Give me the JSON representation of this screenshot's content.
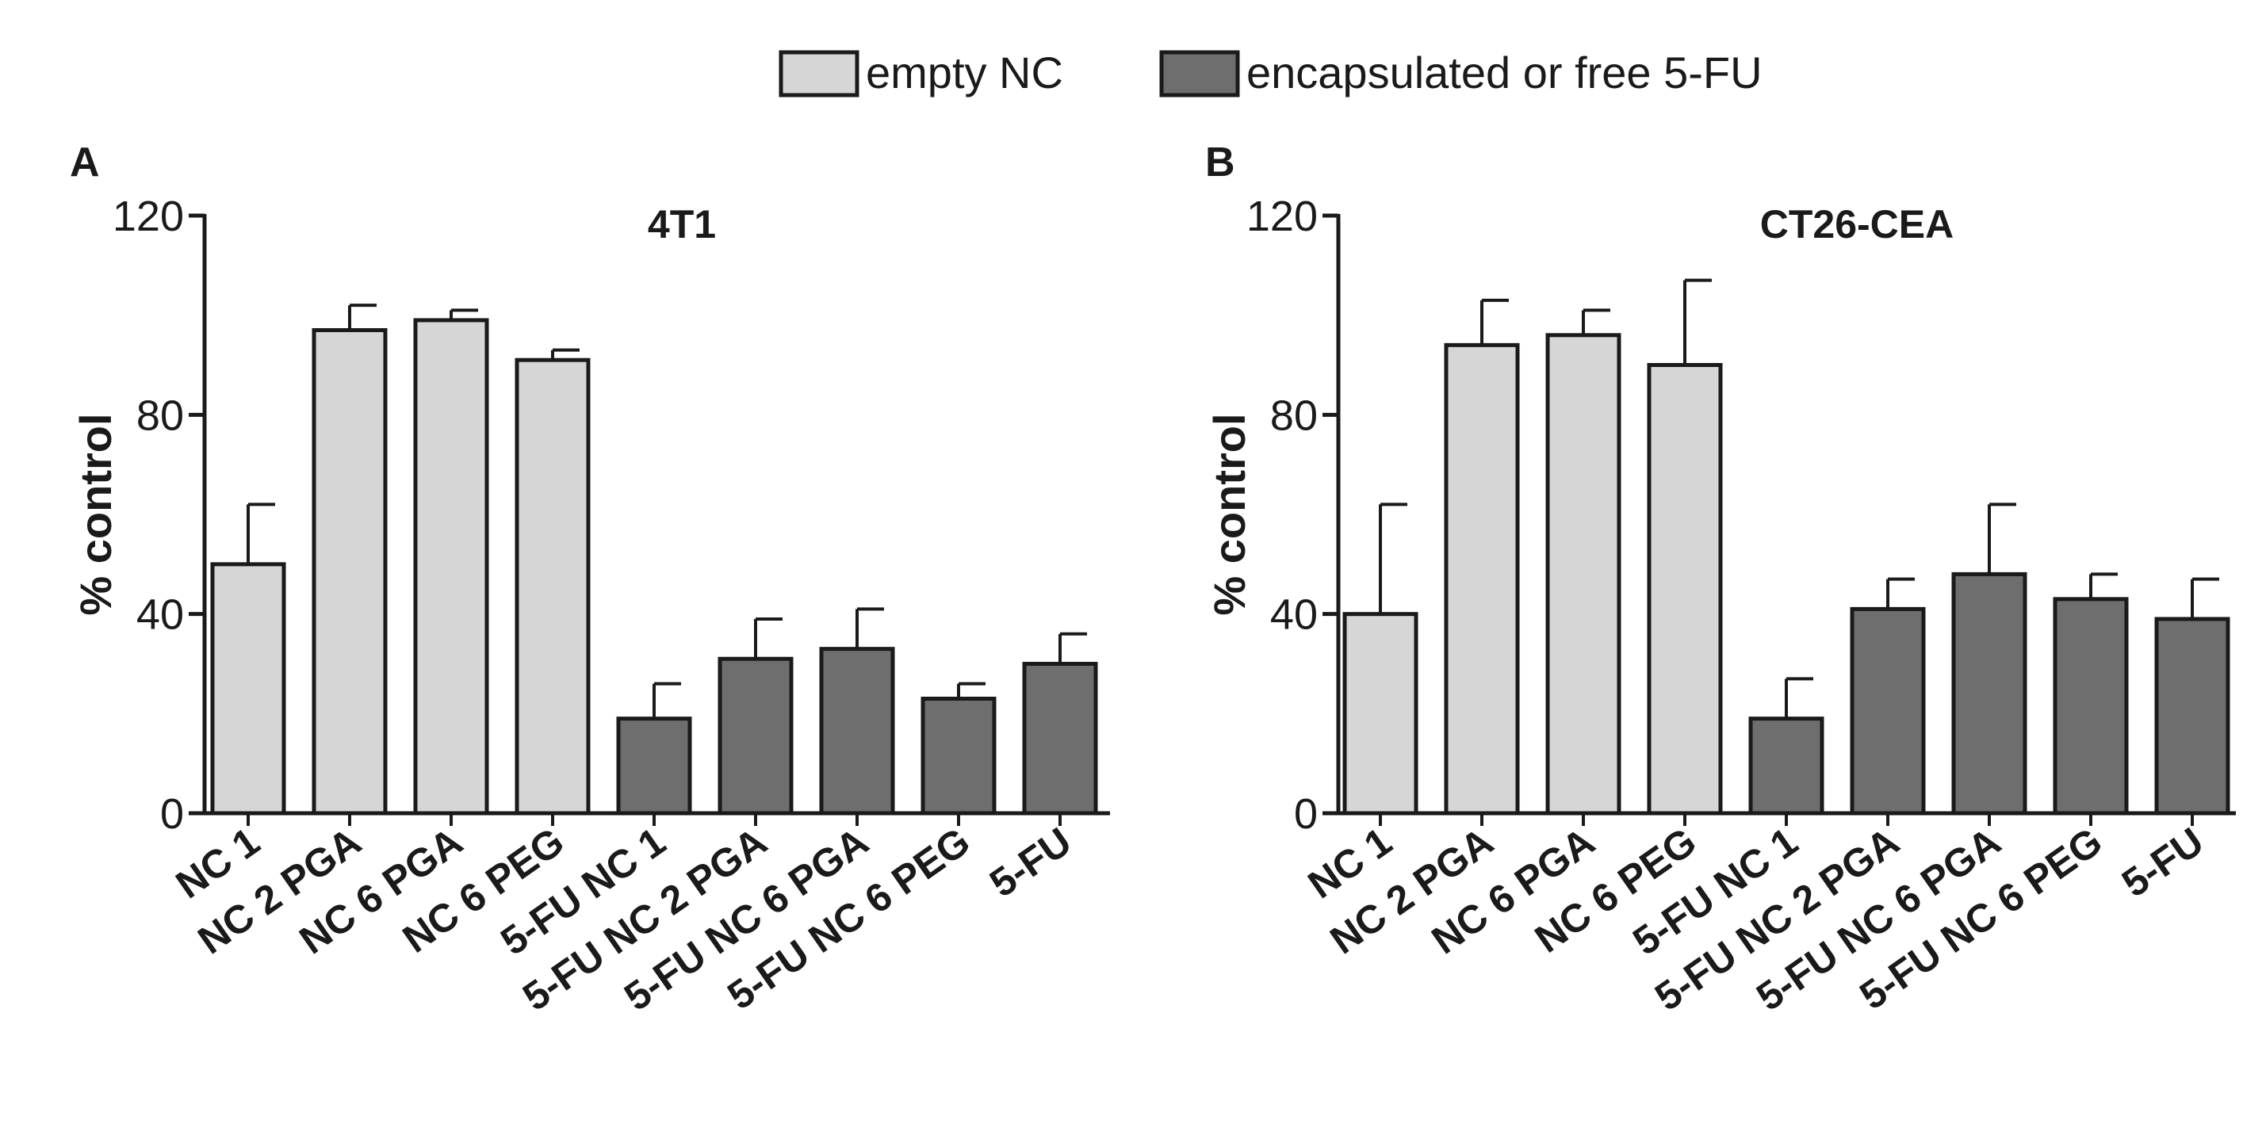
{
  "legend": {
    "items": [
      {
        "label": "empty NC",
        "color": "#d6d6d6"
      },
      {
        "label": "encapsulated or free 5-FU",
        "color": "#6e6e6e"
      }
    ]
  },
  "chart_data": [
    {
      "type": "bar",
      "panel": "A",
      "title": "4T1",
      "xlabel": "",
      "ylabel": "% control",
      "ylim": [
        0,
        120
      ],
      "yticks": [
        0,
        40,
        80,
        120
      ],
      "categories": [
        "NC 1",
        "NC 2 PGA",
        "NC 6 PGA",
        "NC 6 PEG",
        "5-FU NC 1",
        "5-FU NC 2 PGA",
        "5-FU NC 6 PGA",
        "5-FU NC 6 PEG",
        "5-FU"
      ],
      "values": [
        50,
        97,
        99,
        91,
        19,
        31,
        33,
        23,
        30
      ],
      "errors": [
        12,
        5,
        2,
        2,
        7,
        8,
        8,
        3,
        6
      ],
      "groups": [
        "empty NC",
        "empty NC",
        "empty NC",
        "empty NC",
        "encapsulated or free 5-FU",
        "encapsulated or free 5-FU",
        "encapsulated or free 5-FU",
        "encapsulated or free 5-FU",
        "encapsulated or free 5-FU"
      ]
    },
    {
      "type": "bar",
      "panel": "B",
      "title": "CT26-CEA",
      "xlabel": "",
      "ylabel": "% control",
      "ylim": [
        0,
        120
      ],
      "yticks": [
        0,
        40,
        80,
        120
      ],
      "categories": [
        "NC 1",
        "NC 2 PGA",
        "NC 6 PGA",
        "NC 6 PEG",
        "5-FU NC 1",
        "5-FU NC 2 PGA",
        "5-FU NC 6 PGA",
        "5-FU NC 6 PEG",
        "5-FU"
      ],
      "values": [
        40,
        94,
        96,
        90,
        19,
        41,
        48,
        43,
        39
      ],
      "errors": [
        22,
        9,
        5,
        17,
        8,
        6,
        14,
        5,
        8
      ],
      "groups": [
        "empty NC",
        "empty NC",
        "empty NC",
        "empty NC",
        "encapsulated or free 5-FU",
        "encapsulated or free 5-FU",
        "encapsulated or free 5-FU",
        "encapsulated or free 5-FU",
        "encapsulated or free 5-FU"
      ]
    }
  ]
}
